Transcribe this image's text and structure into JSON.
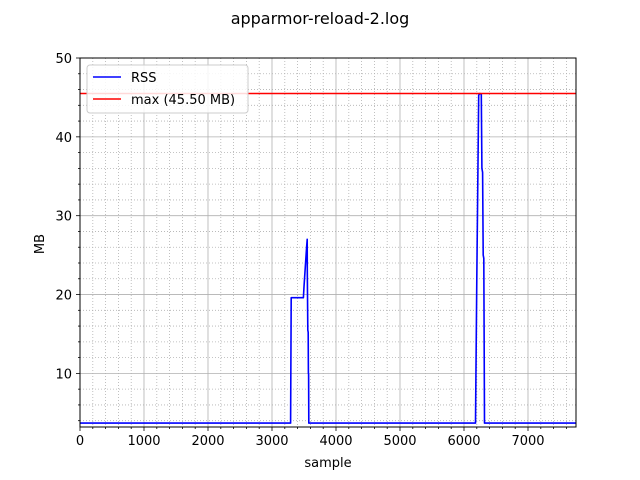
{
  "chart_data": {
    "type": "line",
    "title": "apparmor-reload-2.log",
    "xlabel": "sample",
    "ylabel": "MB",
    "xlim": [
      0,
      7750
    ],
    "ylim": [
      3.2,
      50
    ],
    "xticks": [
      0,
      1000,
      2000,
      3000,
      4000,
      5000,
      6000,
      7000
    ],
    "yticks": [
      10,
      20,
      30,
      40,
      50
    ],
    "grid": true,
    "minor_grid": true,
    "legend_position": "top-left",
    "series": [
      {
        "name": "RSS",
        "color": "#0000ff",
        "x": [
          0,
          3290,
          3300,
          3490,
          3500,
          3540,
          3550,
          3552,
          3560,
          3565,
          3568,
          3572,
          3575,
          3580,
          3600,
          6180,
          6200,
          6230,
          6250,
          6270,
          6280,
          6290,
          6300,
          6310,
          6320,
          6330,
          7750
        ],
        "y": [
          3.7,
          3.7,
          19.6,
          19.6,
          21,
          26,
          27,
          23,
          15.5,
          15.2,
          10,
          9.9,
          3.7,
          3.7,
          3.7,
          3.7,
          22,
          45.3,
          45.5,
          45.4,
          36,
          35.5,
          25,
          24.6,
          3.7,
          3.7,
          3.7
        ]
      },
      {
        "name": "max (45.50 MB)",
        "color": "#ff0000",
        "x": [
          0,
          7750
        ],
        "y": [
          45.5,
          45.5
        ]
      }
    ]
  }
}
